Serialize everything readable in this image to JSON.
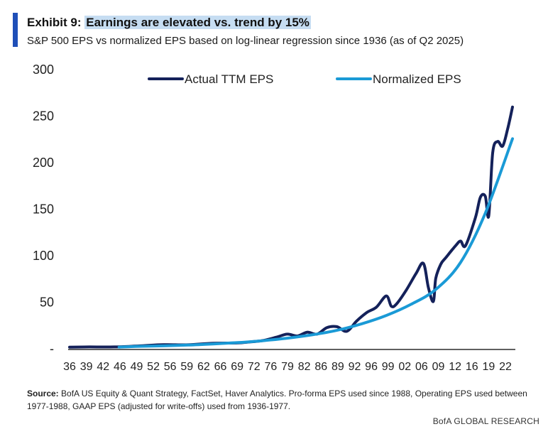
{
  "header": {
    "exhibit_label": "Exhibit 9:",
    "title_highlight": "Earnings are elevated vs. trend by 15%",
    "subtitle": "S&P 500 EPS vs normalized EPS based on log-linear regression since 1936 (as of Q2 2025)",
    "accent_color": "#1f4fb8",
    "highlight_color": "#c6ddf2"
  },
  "chart_data": {
    "type": "line",
    "title": "Earnings are elevated vs. trend by 15%",
    "ylim": [
      0,
      300
    ],
    "yticks": [
      {
        "value": 300,
        "label": "300"
      },
      {
        "value": 250,
        "label": "250"
      },
      {
        "value": 200,
        "label": "200"
      },
      {
        "value": 150,
        "label": "150"
      },
      {
        "value": 100,
        "label": "100"
      },
      {
        "value": 50,
        "label": "50"
      },
      {
        "value": 0,
        "label": "-"
      }
    ],
    "xlim": [
      1936,
      2025.5
    ],
    "xticks": [
      "36",
      "39",
      "42",
      "46",
      "49",
      "52",
      "56",
      "59",
      "62",
      "66",
      "69",
      "72",
      "76",
      "79",
      "82",
      "86",
      "89",
      "92",
      "96",
      "99",
      "02",
      "06",
      "09",
      "12",
      "16",
      "19",
      "22"
    ],
    "legend_position": "top",
    "grid": false,
    "series": [
      {
        "name": "Actual TTM EPS",
        "color": "#14215a",
        "x": [
          1936,
          1940,
          1945,
          1950,
          1955,
          1960,
          1965,
          1970,
          1972,
          1975,
          1978,
          1980,
          1982,
          1984,
          1986,
          1988,
          1990,
          1992,
          1994,
          1996,
          1998,
          2000,
          2001,
          2002,
          2004,
          2006,
          2007.5,
          2008.5,
          2009.5,
          2010,
          2011,
          2012,
          2014,
          2015,
          2016,
          2018,
          2019,
          2020,
          2020.7,
          2021.5,
          2022.5,
          2023.5,
          2024.5,
          2025.5
        ],
        "values": [
          1.0,
          1.2,
          1.2,
          2.3,
          3.6,
          3.5,
          5.2,
          5.5,
          6.4,
          8.0,
          12.0,
          15.0,
          13.0,
          17.0,
          15.0,
          22.0,
          23.0,
          18.0,
          29.0,
          38.0,
          44.0,
          56.0,
          45.0,
          47.0,
          62.0,
          80.0,
          91.0,
          65.0,
          50.0,
          75.0,
          90.0,
          97.0,
          110.0,
          115.0,
          110.0,
          140.0,
          162.0,
          163.0,
          142.0,
          210.0,
          222.0,
          217.0,
          235.0,
          259.0
        ]
      },
      {
        "name": "Normalized EPS",
        "color": "#1a9ad6",
        "x": [
          1946,
          1950,
          1955,
          1960,
          1965,
          1970,
          1975,
          1980,
          1985,
          1990,
          1995,
          2000,
          2005,
          2010,
          2015,
          2020,
          2025.5
        ],
        "values": [
          1.0,
          1.8,
          2.4,
          3.2,
          4.4,
          5.9,
          7.9,
          10.6,
          14.2,
          19.0,
          26.0,
          35.0,
          47.0,
          63.0,
          92.0,
          145.0,
          225.0
        ]
      }
    ]
  },
  "footer": {
    "source_label": "Source:",
    "source_text": " BofA US Equity & Quant Strategy, FactSet, Haver Analytics. Pro-forma EPS used since 1988, Operating EPS used between 1977-1988, GAAP EPS (adjusted for write-offs) used from 1936-1977.",
    "brand": "BofA GLOBAL RESEARCH"
  }
}
